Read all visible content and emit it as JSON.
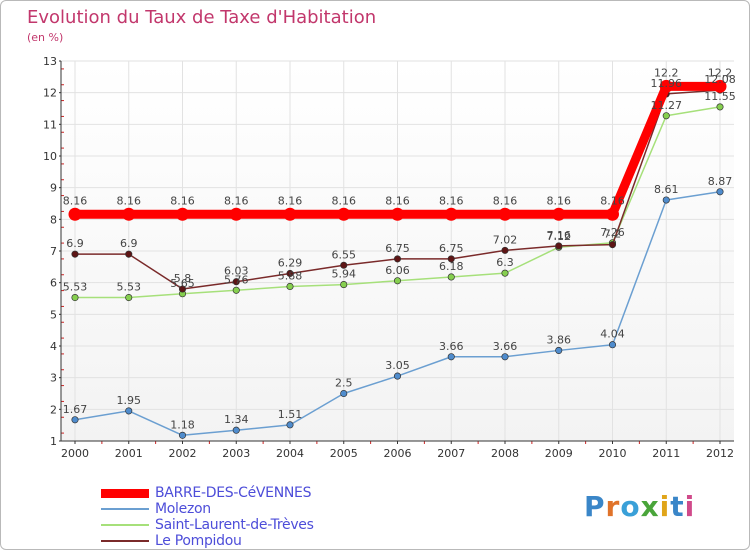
{
  "chart_data": {
    "type": "line",
    "title": "Evolution du Taux de Taxe d'Habitation",
    "subtitle": "(en %)",
    "x": [
      "2000",
      "2001",
      "2002",
      "2003",
      "2004",
      "2005",
      "2006",
      "2007",
      "2008",
      "2009",
      "2010",
      "2011",
      "2012"
    ],
    "ylim": [
      1,
      13
    ],
    "yticks": [
      "1",
      "2",
      "3",
      "4",
      "5",
      "6",
      "7",
      "8",
      "9",
      "10",
      "11",
      "12",
      "13"
    ],
    "grid": true,
    "legend_position": "bottom-left",
    "series": [
      {
        "name": "BARRE-DES-CéVENNES",
        "color": "#ff0000",
        "marker": "#ff0000",
        "values": [
          8.16,
          8.16,
          8.16,
          8.16,
          8.16,
          8.16,
          8.16,
          8.16,
          8.16,
          8.16,
          8.16,
          12.2,
          12.2
        ],
        "labels": [
          "8.16",
          "8.16",
          "8.16",
          "8.16",
          "8.16",
          "8.16",
          "8.16",
          "8.16",
          "8.16",
          "8.16",
          "8.16",
          "12.2",
          "12.2"
        ]
      },
      {
        "name": "Molezon",
        "color": "#6b9fd1",
        "marker": "#4f8ccd",
        "values": [
          1.67,
          1.95,
          1.18,
          1.34,
          1.51,
          2.5,
          3.05,
          3.66,
          3.66,
          3.86,
          4.04,
          8.61,
          8.87
        ],
        "labels": [
          "1.67",
          "1.95",
          "1.18",
          "1.34",
          "1.51",
          "2.5",
          "3.05",
          "3.66",
          "3.66",
          "3.86",
          "4.04",
          "8.61",
          "8.87"
        ]
      },
      {
        "name": "Saint-Laurent-de-Trèves",
        "color": "#a6e07a",
        "marker": "#86cf4f",
        "values": [
          5.53,
          5.53,
          5.65,
          5.76,
          5.88,
          5.94,
          6.06,
          6.18,
          6.3,
          7.12,
          7.26,
          11.27,
          11.55
        ],
        "labels": [
          "5.53",
          "5.53",
          "5.65",
          "5.76",
          "5.88",
          "5.94",
          "6.06",
          "6.18",
          "6.3",
          "7.12",
          "7.26",
          "11.27",
          "11.55"
        ]
      },
      {
        "name": "Le Pompidou",
        "color": "#7a2a2a",
        "marker": "#5e1515",
        "values": [
          6.9,
          6.9,
          5.8,
          6.03,
          6.29,
          6.55,
          6.75,
          6.75,
          7.02,
          7.16,
          7.2,
          11.96,
          12.08
        ],
        "labels": [
          "6.9",
          "6.9",
          "5.8",
          "6.03",
          "6.29",
          "6.55",
          "6.75",
          "6.75",
          "7.02",
          "7.16",
          "7.2",
          "11.96",
          "12.08"
        ]
      }
    ]
  },
  "logo": {
    "letters": [
      "P",
      "r",
      "o",
      "x",
      "i",
      "t",
      "i"
    ],
    "colors": [
      "#3a86c8",
      "#e0732a",
      "#3aa0d8",
      "#4aa53a",
      "#e0a51a",
      "#3a86c8",
      "#d04a8a"
    ]
  }
}
